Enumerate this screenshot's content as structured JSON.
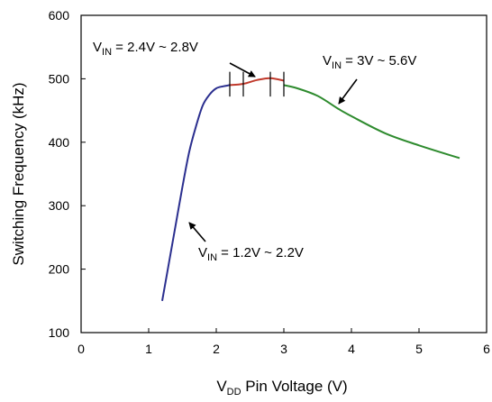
{
  "chart_data": {
    "type": "line",
    "title": "",
    "xlabel": {
      "main": "V",
      "sub": "DD",
      "rest": " Pin Voltage (V)"
    },
    "ylabel": "Switching Frequency (kHz)",
    "xlim": [
      0,
      6
    ],
    "ylim": [
      100,
      600
    ],
    "xticks": [
      0,
      1,
      2,
      3,
      4,
      5,
      6
    ],
    "yticks": [
      100,
      200,
      300,
      400,
      500,
      600
    ],
    "grid": false,
    "series": [
      {
        "color": "#2b2f8f",
        "x": [
          1.2,
          1.3,
          1.4,
          1.5,
          1.6,
          1.7,
          1.8,
          1.9,
          2.0,
          2.1,
          2.2
        ],
        "y": [
          150,
          210,
          270,
          330,
          385,
          425,
          458,
          475,
          485,
          488,
          490
        ]
      },
      {
        "color": "#c0392b",
        "x": [
          2.2,
          2.4,
          2.6,
          2.8,
          3.0
        ],
        "y": [
          490,
          492,
          498,
          501,
          497
        ]
      },
      {
        "color": "#2e8b2e",
        "x": [
          3.0,
          3.2,
          3.5,
          3.8,
          4.0,
          4.5,
          5.0,
          5.6
        ],
        "y": [
          490,
          485,
          473,
          453,
          441,
          414,
          395,
          375
        ]
      }
    ],
    "range_markers": [
      2.2,
      2.4,
      2.8,
      3.0
    ],
    "annotations": [
      {
        "main": "V",
        "sub": "IN",
        "rest": " = 2.4V ~ 2.8V"
      },
      {
        "main": "V",
        "sub": "IN",
        "rest": " = 3V ~ 5.6V"
      },
      {
        "main": "V",
        "sub": "IN",
        "rest": " = 1.2V ~ 2.2V"
      }
    ]
  }
}
